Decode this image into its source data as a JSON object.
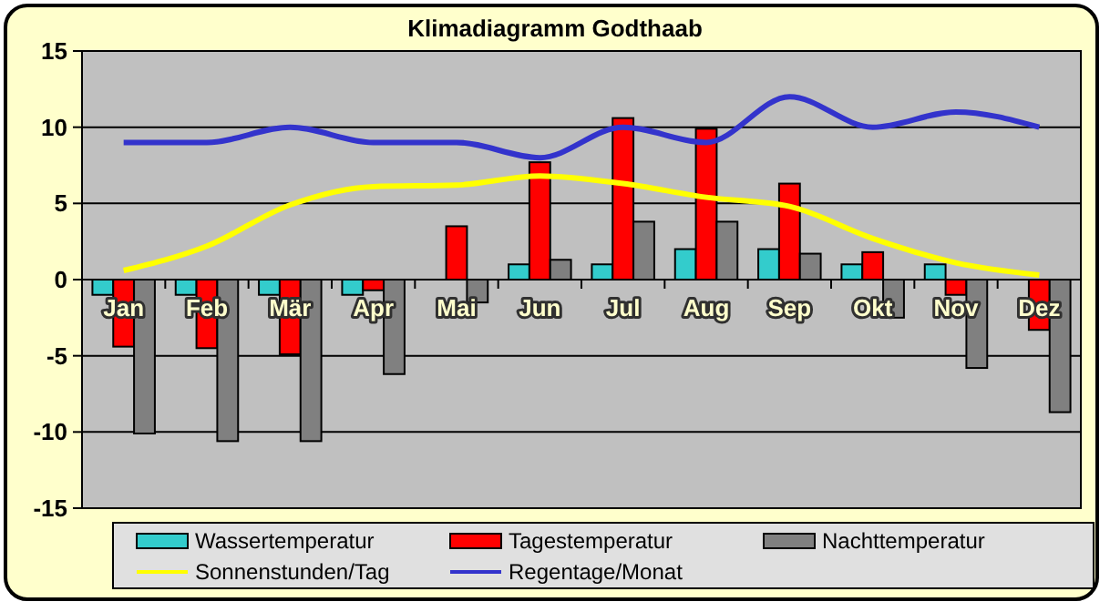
{
  "chart_data": {
    "type": "bar",
    "title": "Klimadiagramm Godthaab",
    "categories": [
      "Jan",
      "Feb",
      "Mär",
      "Apr",
      "Mai",
      "Jun",
      "Jul",
      "Aug",
      "Sep",
      "Okt",
      "Nov",
      "Dez"
    ],
    "series": [
      {
        "name": "Wassertemperatur",
        "color": "#33cccc",
        "values": [
          -1,
          -1,
          -1,
          -1,
          null,
          1,
          1,
          2,
          2,
          1,
          1,
          null
        ]
      },
      {
        "name": "Tagestemperatur",
        "color": "#ff0000",
        "values": [
          -4.4,
          -4.5,
          -4.9,
          -0.7,
          3.5,
          7.7,
          10.6,
          9.9,
          6.3,
          1.8,
          -1,
          -3.3
        ]
      },
      {
        "name": "Nachttemperatur",
        "color": "#808080",
        "values": [
          -10.1,
          -10.6,
          -10.6,
          -6.2,
          -1.5,
          1.3,
          3.8,
          3.8,
          1.7,
          -2.5,
          -5.8,
          -8.7
        ]
      },
      {
        "name": "Sonnenstunden/Tag",
        "type": "line",
        "color": "#ffff00",
        "values": [
          0.6,
          2.2,
          4.9,
          6.1,
          6.2,
          6.8,
          6.3,
          5.4,
          4.8,
          2.7,
          1.1,
          0.3
        ]
      },
      {
        "name": "Regentage/Monat",
        "type": "line",
        "color": "#3333cc",
        "values": [
          9,
          9,
          10,
          9,
          9,
          8,
          10,
          9,
          12,
          10,
          11,
          10
        ]
      }
    ],
    "ylim": [
      -15,
      15
    ],
    "yticks": [
      -15,
      -10,
      -5,
      0,
      5,
      10,
      15
    ],
    "grid": "y",
    "legend": "bottom"
  }
}
